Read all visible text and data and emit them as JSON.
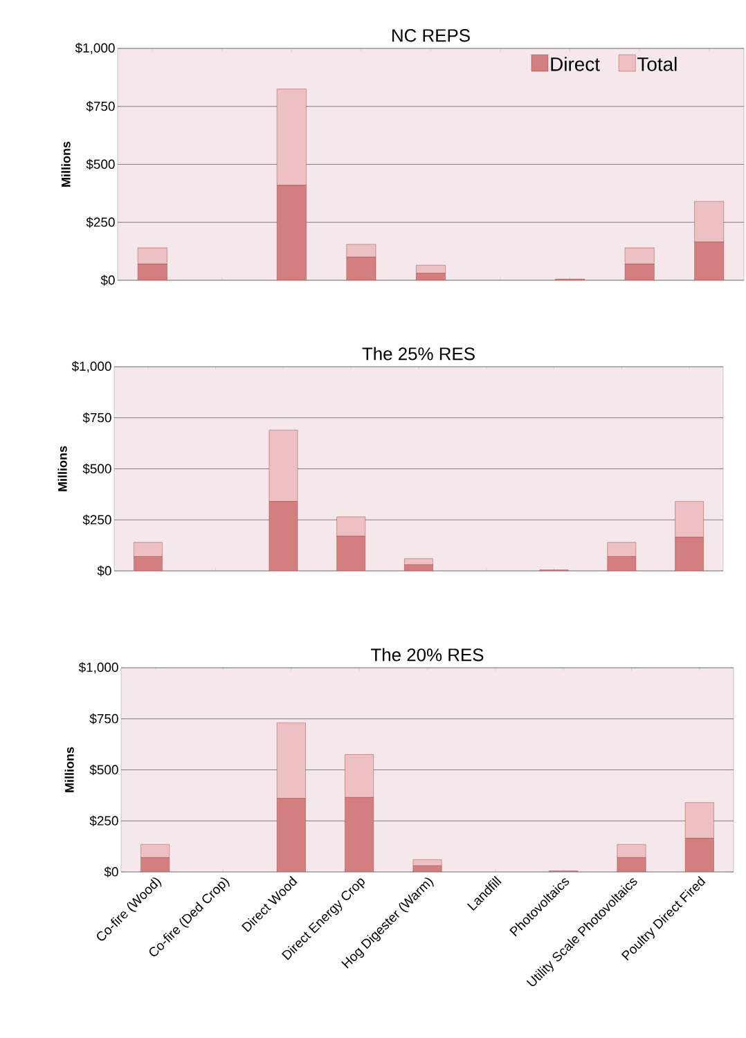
{
  "chart_data": [
    {
      "type": "bar",
      "title": "NC REPS",
      "ylabel": "Millions",
      "stacked": true,
      "grid": "y",
      "legend": "top right",
      "tick_labels": "y",
      "categories": [
        null,
        null,
        null,
        null,
        null,
        null,
        null,
        null,
        null
      ],
      "ylim": [
        0,
        1000
      ],
      "yticks": [
        {
          "value": 0,
          "label": "$0"
        },
        {
          "value": 250,
          "label": "$250"
        },
        {
          "value": 500,
          "label": "$500"
        },
        {
          "value": 750,
          "label": "$750"
        },
        {
          "value": 1000,
          "label": "$1,000"
        }
      ],
      "series": [
        {
          "name": "Direct",
          "color": "#d47f7f",
          "values": [
            70,
            0,
            410,
            100,
            30,
            0,
            5,
            70,
            165
          ]
        },
        {
          "name": "Total",
          "color": "#edc1c4",
          "values": [
            70,
            0,
            415,
            55,
            35,
            0,
            0,
            70,
            175
          ]
        }
      ]
    },
    {
      "type": "bar",
      "title": "The 25% RES",
      "ylabel": "Millions",
      "stacked": true,
      "grid": "y",
      "tick_labels": "y",
      "categories": [
        null,
        null,
        null,
        null,
        null,
        null,
        null,
        null,
        null
      ],
      "ylim": [
        0,
        1000
      ],
      "yticks": [
        {
          "value": 0,
          "label": "$0"
        },
        {
          "value": 250,
          "label": "$250"
        },
        {
          "value": 500,
          "label": "$500"
        },
        {
          "value": 750,
          "label": "$750"
        },
        {
          "value": 1000,
          "label": "$1,000"
        }
      ],
      "series": [
        {
          "color": "#d47f7f",
          "values": [
            70,
            0,
            340,
            170,
            30,
            0,
            5,
            70,
            165
          ]
        },
        {
          "color": "#edc1c4",
          "values": [
            70,
            0,
            350,
            95,
            30,
            0,
            0,
            70,
            175
          ]
        }
      ]
    },
    {
      "type": "bar",
      "title": "The 20% RES",
      "ylabel": "Millions",
      "stacked": true,
      "grid": "y",
      "categories": [
        "Co-fire (Wood)",
        "Co-fire (Ded Crop)",
        "Direct Wood",
        "Direct Energy Crop",
        "Hog Digester (Warm)",
        "Landfill",
        "Photovoltaics",
        "Utility Scale Photovoltaics",
        "Poultry Direct Fired"
      ],
      "ylim": [
        0,
        1000
      ],
      "yticks": [
        {
          "value": 0,
          "label": "$0"
        },
        {
          "value": 250,
          "label": "$250"
        },
        {
          "value": 500,
          "label": "$500"
        },
        {
          "value": 750,
          "label": "$750"
        },
        {
          "value": 1000,
          "label": "$1,000"
        }
      ],
      "series": [
        {
          "color": "#d47f7f",
          "values": [
            70,
            0,
            360,
            365,
            30,
            0,
            5,
            70,
            165
          ]
        },
        {
          "color": "#edc1c4",
          "values": [
            65,
            0,
            370,
            210,
            30,
            0,
            0,
            65,
            175
          ]
        }
      ]
    }
  ]
}
